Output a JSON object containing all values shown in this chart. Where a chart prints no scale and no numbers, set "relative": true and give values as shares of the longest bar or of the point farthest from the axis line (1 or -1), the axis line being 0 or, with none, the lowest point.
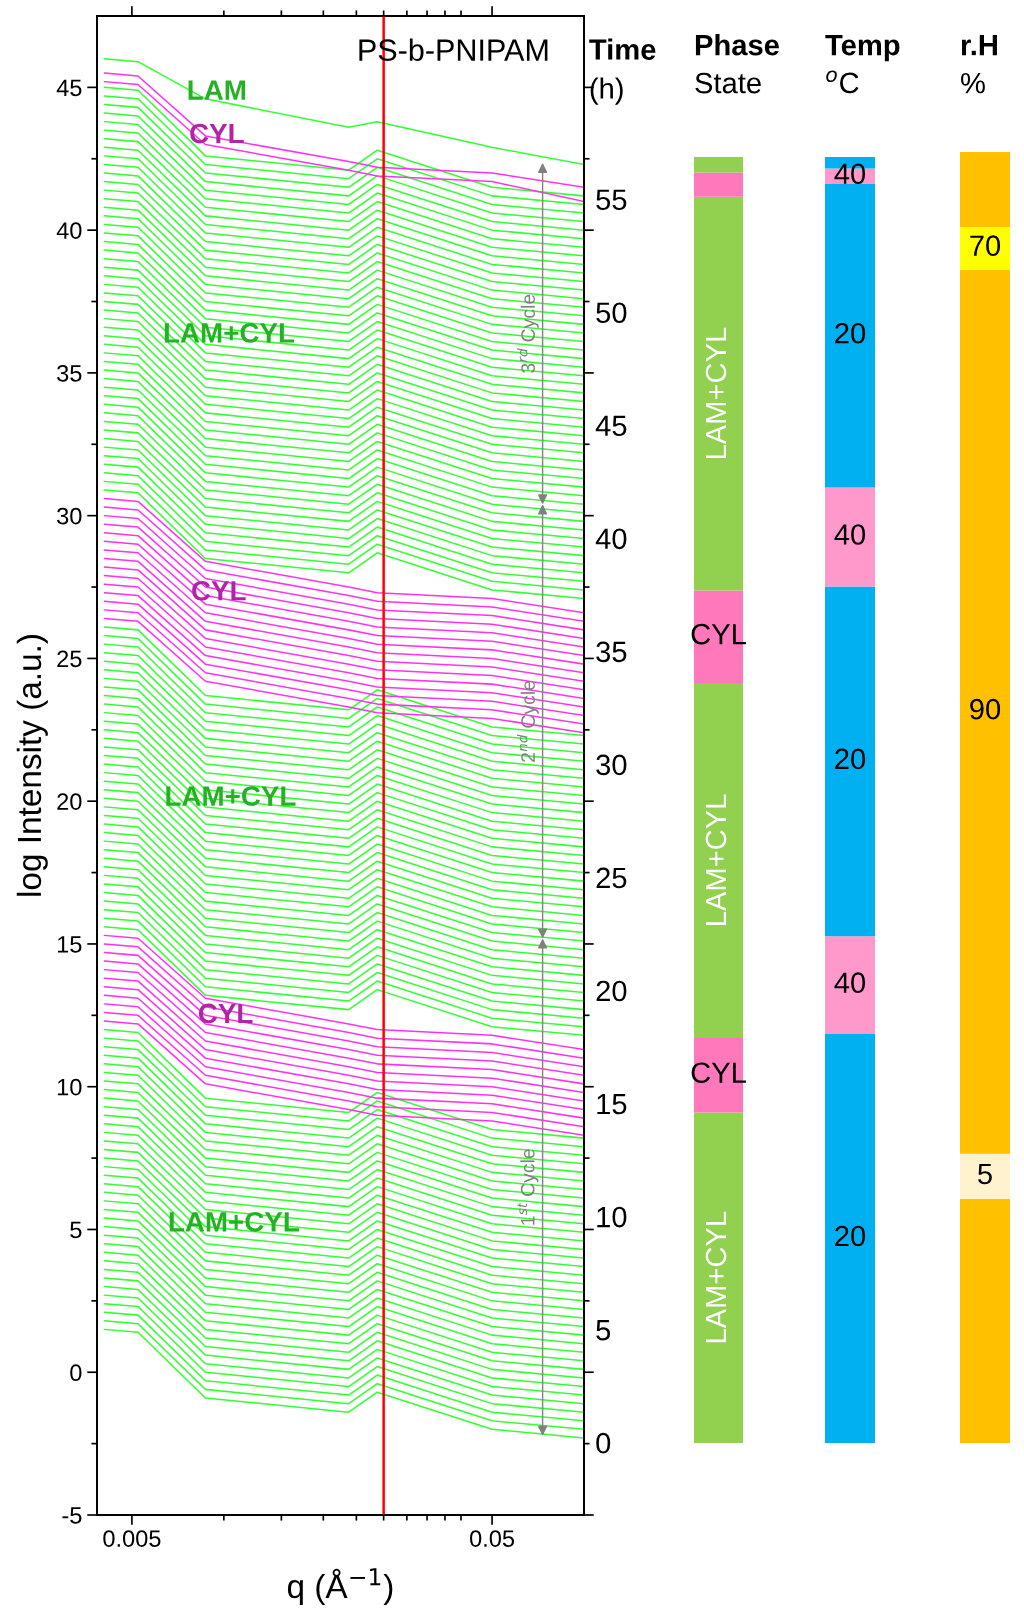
{
  "chart_data": [
    {
      "type": "line",
      "title": "PS-b-PNIPAM",
      "xlabel": "q (Å$^{−1}$)",
      "ylabel": "log Intensity (a.u.)",
      "y2label": "Time\n(h)",
      "log": "x",
      "x": [
        0.0042,
        0.0052,
        0.008,
        0.02,
        0.024,
        0.05,
        0.09
      ],
      "xlim": [
        0.004,
        0.09
      ],
      "xticks": [
        0.005,
        {
          "value": 0.009,
          "label": null
        },
        {
          "value": 0.013,
          "label": null
        },
        {
          "value": 0.017,
          "label": null
        },
        {
          "value": 0.021,
          "label": null
        },
        {
          "value": 0.025,
          "label": null
        },
        {
          "value": 0.029,
          "label": null
        },
        {
          "value": 0.033,
          "label": null
        },
        {
          "value": 0.037,
          "label": null
        },
        {
          "value": 0.041,
          "label": null
        },
        0.05
      ],
      "ylim": [
        -5,
        47.5
      ],
      "yticks": [
        -5,
        {
          "value": -2.5,
          "label": null
        },
        0,
        {
          "value": 2.5,
          "label": null
        },
        5,
        {
          "value": 7.5,
          "label": null
        },
        10,
        {
          "value": 12.5,
          "label": null
        },
        15,
        {
          "value": 17.5,
          "label": null
        },
        20,
        {
          "value": 22.5,
          "label": null
        },
        25,
        {
          "value": 27.5,
          "label": null
        },
        30,
        {
          "value": 32.5,
          "label": null
        },
        35,
        {
          "value": 37.5,
          "label": null
        },
        40,
        {
          "value": 42.5,
          "label": null
        },
        45
      ],
      "y2lim": [
        -3.2,
        63.1
      ],
      "y2ticks": [
        0,
        5,
        10,
        15,
        20,
        25,
        30,
        35,
        40,
        45,
        50,
        55
      ],
      "ref_lines": [
        {
          "axis": "x",
          "value": 0.025,
          "color": "#ff0000"
        }
      ],
      "annotations": [
        "LAM",
        "CYL",
        "LAM+CYL",
        "CYL",
        "LAM+CYL",
        "CYL",
        "LAM+CYL",
        "3$^{rd}$ Cycle",
        "2$^{nd}$ Cycle",
        "1$^{st}$ Cycle"
      ],
      "series": [
        {
          "color": "#33ff33",
          "values": [
            1.5,
            1.4,
            -0.9,
            -1.4,
            -0.7,
            -2.0,
            -2.3
          ]
        },
        {
          "color": "#33ff33",
          "values": [
            1.8,
            1.7,
            -0.6,
            -1.1,
            -0.4,
            -1.7,
            -2.0
          ]
        },
        {
          "color": "#33ff33",
          "values": [
            2.1,
            2.0,
            -0.3,
            -0.8,
            -0.1,
            -1.4,
            -1.7
          ]
        },
        {
          "color": "#33ff33",
          "values": [
            2.4,
            2.3,
            0.0,
            -0.5,
            0.2,
            -1.1,
            -1.4
          ]
        },
        {
          "color": "#33ff33",
          "values": [
            2.7,
            2.6,
            0.3,
            -0.2,
            0.5,
            -0.8,
            -1.1
          ]
        },
        {
          "color": "#33ff33",
          "values": [
            3.0,
            2.9,
            0.6,
            0.1,
            0.8,
            -0.5,
            -0.8
          ]
        },
        {
          "color": "#33ff33",
          "values": [
            3.3,
            3.2,
            0.9,
            0.4,
            1.1,
            -0.2,
            -0.5
          ]
        },
        {
          "color": "#33ff33",
          "values": [
            3.6,
            3.5,
            1.2,
            0.7,
            1.4,
            0.1,
            -0.2
          ]
        },
        {
          "color": "#33ff33",
          "values": [
            3.9,
            3.8,
            1.5,
            1.0,
            1.7,
            0.4,
            0.1
          ]
        },
        {
          "color": "#33ff33",
          "values": [
            4.2,
            4.1,
            1.8,
            1.3,
            2.0,
            0.7,
            0.4
          ]
        },
        {
          "color": "#33ff33",
          "values": [
            4.5,
            4.4,
            2.1,
            1.6,
            2.3,
            1.0,
            0.7
          ]
        },
        {
          "color": "#33ff33",
          "values": [
            4.8,
            4.7,
            2.4,
            1.9,
            2.6,
            1.3,
            1.0
          ]
        },
        {
          "color": "#33ff33",
          "values": [
            5.1,
            5.0,
            2.7,
            2.2,
            2.9,
            1.6,
            1.3
          ]
        },
        {
          "color": "#33ff33",
          "values": [
            5.4,
            5.3,
            3.0,
            2.5,
            3.2,
            1.9,
            1.6
          ]
        },
        {
          "color": "#33ff33",
          "values": [
            5.7,
            5.6,
            3.3,
            2.8,
            3.5,
            2.2,
            1.9
          ]
        },
        {
          "color": "#33ff33",
          "values": [
            6.0,
            5.9,
            3.6,
            3.1,
            3.8,
            2.5,
            2.2
          ]
        },
        {
          "color": "#33ff33",
          "values": [
            6.3,
            6.2,
            3.9,
            3.4,
            4.1,
            2.8,
            2.5
          ]
        },
        {
          "color": "#33ff33",
          "values": [
            6.6,
            6.5,
            4.2,
            3.7,
            4.4,
            3.1,
            2.8
          ]
        },
        {
          "color": "#33ff33",
          "values": [
            6.9,
            6.8,
            4.5,
            4.0,
            4.7,
            3.4,
            3.1
          ]
        },
        {
          "color": "#33ff33",
          "values": [
            7.2,
            7.1,
            4.8,
            4.3,
            5.0,
            3.7,
            3.4
          ]
        },
        {
          "color": "#33ff33",
          "values": [
            7.5,
            7.4,
            5.1,
            4.6,
            5.3,
            4.0,
            3.7
          ]
        },
        {
          "color": "#33ff33",
          "values": [
            7.8,
            7.7,
            5.4,
            4.9,
            5.6,
            4.3,
            4.0
          ]
        },
        {
          "color": "#33ff33",
          "values": [
            8.1,
            8.0,
            5.7,
            5.2,
            5.9,
            4.6,
            4.3
          ]
        },
        {
          "color": "#33ff33",
          "values": [
            8.4,
            8.3,
            6.0,
            5.5,
            6.2,
            4.9,
            4.6
          ]
        },
        {
          "color": "#33ff33",
          "values": [
            8.7,
            8.6,
            6.3,
            5.8,
            6.5,
            5.2,
            4.9
          ]
        },
        {
          "color": "#33ff33",
          "values": [
            9.0,
            8.9,
            6.6,
            6.1,
            6.8,
            5.5,
            5.2
          ]
        },
        {
          "color": "#33ff33",
          "values": [
            9.3,
            9.2,
            6.9,
            6.4,
            7.1,
            5.8,
            5.5
          ]
        },
        {
          "color": "#33ff33",
          "values": [
            9.6,
            9.5,
            7.2,
            6.7,
            7.4,
            6.1,
            5.8
          ]
        },
        {
          "color": "#33ff33",
          "values": [
            9.9,
            9.8,
            7.5,
            7.0,
            7.7,
            6.4,
            6.1
          ]
        },
        {
          "color": "#33ff33",
          "values": [
            10.2,
            10.1,
            7.8,
            7.3,
            8.0,
            6.7,
            6.4
          ]
        },
        {
          "color": "#33ff33",
          "values": [
            10.5,
            10.4,
            8.1,
            7.6,
            8.3,
            7.0,
            6.7
          ]
        },
        {
          "color": "#33ff33",
          "values": [
            10.8,
            10.7,
            8.4,
            7.9,
            8.6,
            7.3,
            7.0
          ]
        },
        {
          "color": "#33ff33",
          "values": [
            11.1,
            11.0,
            8.7,
            8.2,
            8.9,
            7.6,
            7.3
          ]
        },
        {
          "color": "#33ff33",
          "values": [
            11.4,
            11.3,
            9.0,
            8.5,
            9.2,
            7.9,
            7.6
          ]
        },
        {
          "color": "#33ff33",
          "values": [
            11.7,
            11.6,
            9.3,
            8.8,
            9.5,
            8.2,
            7.9
          ]
        },
        {
          "color": "#33ff33",
          "values": [
            12.0,
            11.9,
            9.6,
            9.1,
            9.8,
            8.5,
            8.2
          ]
        },
        {
          "color": "#ff33ee",
          "values": [
            12.3,
            12.2,
            10.1,
            9.2,
            9.0,
            8.8,
            8.3
          ]
        },
        {
          "color": "#ff33ee",
          "values": [
            12.6,
            12.5,
            10.4,
            9.5,
            9.3,
            9.1,
            8.6
          ]
        },
        {
          "color": "#ff33ee",
          "values": [
            12.9,
            12.8,
            10.7,
            9.8,
            9.6,
            9.4,
            8.9
          ]
        },
        {
          "color": "#ff33ee",
          "values": [
            13.2,
            13.1,
            11.0,
            10.1,
            9.9,
            9.7,
            9.2
          ]
        },
        {
          "color": "#ff33ee",
          "values": [
            13.5,
            13.4,
            11.3,
            10.4,
            10.2,
            10.0,
            9.5
          ]
        },
        {
          "color": "#ff33ee",
          "values": [
            13.8,
            13.7,
            11.6,
            10.7,
            10.5,
            10.3,
            9.8
          ]
        },
        {
          "color": "#ff33ee",
          "values": [
            14.1,
            14.0,
            11.9,
            11.0,
            10.8,
            10.6,
            10.1
          ]
        },
        {
          "color": "#ff33ee",
          "values": [
            14.4,
            14.3,
            12.2,
            11.3,
            11.1,
            10.9,
            10.4
          ]
        },
        {
          "color": "#ff33ee",
          "values": [
            14.7,
            14.6,
            12.5,
            11.6,
            11.4,
            11.2,
            10.7
          ]
        },
        {
          "color": "#ff33ee",
          "values": [
            15.0,
            14.9,
            12.8,
            11.9,
            11.7,
            11.5,
            11.0
          ]
        },
        {
          "color": "#ff33ee",
          "values": [
            15.3,
            15.2,
            13.1,
            12.2,
            12.0,
            11.8,
            11.3
          ]
        },
        {
          "color": "#33ff33",
          "values": [
            15.6,
            15.5,
            13.2,
            12.7,
            13.4,
            12.1,
            11.8
          ]
        },
        {
          "color": "#33ff33",
          "values": [
            15.9,
            15.8,
            13.5,
            13.0,
            13.7,
            12.4,
            12.1
          ]
        },
        {
          "color": "#33ff33",
          "values": [
            16.2,
            16.1,
            13.8,
            13.3,
            14.0,
            12.7,
            12.4
          ]
        },
        {
          "color": "#33ff33",
          "values": [
            16.5,
            16.4,
            14.1,
            13.6,
            14.3,
            13.0,
            12.7
          ]
        },
        {
          "color": "#33ff33",
          "values": [
            16.8,
            16.7,
            14.4,
            13.9,
            14.6,
            13.3,
            13.0
          ]
        },
        {
          "color": "#33ff33",
          "values": [
            17.1,
            17.0,
            14.7,
            14.2,
            14.9,
            13.6,
            13.3
          ]
        },
        {
          "color": "#33ff33",
          "values": [
            17.4,
            17.3,
            15.0,
            14.5,
            15.2,
            13.9,
            13.6
          ]
        },
        {
          "color": "#33ff33",
          "values": [
            17.7,
            17.6,
            15.3,
            14.8,
            15.5,
            14.2,
            13.9
          ]
        },
        {
          "color": "#33ff33",
          "values": [
            18.0,
            17.9,
            15.6,
            15.1,
            15.8,
            14.5,
            14.2
          ]
        },
        {
          "color": "#33ff33",
          "values": [
            18.3,
            18.2,
            15.9,
            15.4,
            16.1,
            14.8,
            14.5
          ]
        },
        {
          "color": "#33ff33",
          "values": [
            18.6,
            18.5,
            16.2,
            15.7,
            16.4,
            15.1,
            14.8
          ]
        },
        {
          "color": "#33ff33",
          "values": [
            18.9,
            18.8,
            16.5,
            16.0,
            16.7,
            15.4,
            15.1
          ]
        },
        {
          "color": "#33ff33",
          "values": [
            19.2,
            19.1,
            16.8,
            16.3,
            17.0,
            15.7,
            15.4
          ]
        },
        {
          "color": "#33ff33",
          "values": [
            19.5,
            19.4,
            17.1,
            16.6,
            17.3,
            16.0,
            15.7
          ]
        },
        {
          "color": "#33ff33",
          "values": [
            19.8,
            19.7,
            17.4,
            16.9,
            17.6,
            16.3,
            16.0
          ]
        },
        {
          "color": "#33ff33",
          "values": [
            20.1,
            20.0,
            17.7,
            17.2,
            17.9,
            16.6,
            16.3
          ]
        },
        {
          "color": "#33ff33",
          "values": [
            20.4,
            20.3,
            18.0,
            17.5,
            18.2,
            16.9,
            16.6
          ]
        },
        {
          "color": "#33ff33",
          "values": [
            20.7,
            20.6,
            18.3,
            17.8,
            18.5,
            17.2,
            16.9
          ]
        },
        {
          "color": "#33ff33",
          "values": [
            21.0,
            20.9,
            18.6,
            18.1,
            18.8,
            17.5,
            17.2
          ]
        },
        {
          "color": "#33ff33",
          "values": [
            21.3,
            21.2,
            18.9,
            18.4,
            19.1,
            17.8,
            17.5
          ]
        },
        {
          "color": "#33ff33",
          "values": [
            21.6,
            21.5,
            19.2,
            18.7,
            19.4,
            18.1,
            17.8
          ]
        },
        {
          "color": "#33ff33",
          "values": [
            21.9,
            21.8,
            19.5,
            19.0,
            19.7,
            18.4,
            18.1
          ]
        },
        {
          "color": "#33ff33",
          "values": [
            22.2,
            22.1,
            19.8,
            19.3,
            20.0,
            18.7,
            18.4
          ]
        },
        {
          "color": "#33ff33",
          "values": [
            22.5,
            22.4,
            20.1,
            19.6,
            20.3,
            19.0,
            18.7
          ]
        },
        {
          "color": "#33ff33",
          "values": [
            22.8,
            22.7,
            20.4,
            19.9,
            20.6,
            19.3,
            19.0
          ]
        },
        {
          "color": "#33ff33",
          "values": [
            23.1,
            23.0,
            20.7,
            20.2,
            20.9,
            19.6,
            19.3
          ]
        },
        {
          "color": "#33ff33",
          "values": [
            23.4,
            23.3,
            21.0,
            20.5,
            21.2,
            19.9,
            19.6
          ]
        },
        {
          "color": "#33ff33",
          "values": [
            23.7,
            23.6,
            21.3,
            20.8,
            21.5,
            20.2,
            19.9
          ]
        },
        {
          "color": "#33ff33",
          "values": [
            24.0,
            23.9,
            21.6,
            21.1,
            21.8,
            20.5,
            20.2
          ]
        },
        {
          "color": "#33ff33",
          "values": [
            24.3,
            24.2,
            21.9,
            21.4,
            22.1,
            20.8,
            20.5
          ]
        },
        {
          "color": "#33ff33",
          "values": [
            24.6,
            24.5,
            22.2,
            21.7,
            22.4,
            21.1,
            20.8
          ]
        },
        {
          "color": "#33ff33",
          "values": [
            24.9,
            24.8,
            22.5,
            22.0,
            22.7,
            21.4,
            21.1
          ]
        },
        {
          "color": "#33ff33",
          "values": [
            25.2,
            25.1,
            22.8,
            22.3,
            23.0,
            21.7,
            21.4
          ]
        },
        {
          "color": "#33ff33",
          "values": [
            25.5,
            25.4,
            23.1,
            22.6,
            23.3,
            22.0,
            21.7
          ]
        },
        {
          "color": "#33ff33",
          "values": [
            25.8,
            25.7,
            23.4,
            22.9,
            23.6,
            22.3,
            22.0
          ]
        },
        {
          "color": "#33ff33",
          "values": [
            26.1,
            26.0,
            23.7,
            23.2,
            23.9,
            22.6,
            22.3
          ]
        },
        {
          "color": "#ff33ee",
          "values": [
            26.4,
            26.3,
            24.2,
            23.3,
            23.1,
            22.9,
            22.4
          ]
        },
        {
          "color": "#ff33ee",
          "values": [
            26.7,
            26.6,
            24.5,
            23.6,
            23.4,
            23.2,
            22.7
          ]
        },
        {
          "color": "#ff33ee",
          "values": [
            27.0,
            26.9,
            24.8,
            23.9,
            23.7,
            23.5,
            23.0
          ]
        },
        {
          "color": "#ff33ee",
          "values": [
            27.3,
            27.2,
            25.1,
            24.2,
            24.0,
            23.8,
            23.3
          ]
        },
        {
          "color": "#ff33ee",
          "values": [
            27.6,
            27.5,
            25.4,
            24.5,
            24.3,
            24.1,
            23.6
          ]
        },
        {
          "color": "#ff33ee",
          "values": [
            27.9,
            27.8,
            25.7,
            24.8,
            24.6,
            24.4,
            23.9
          ]
        },
        {
          "color": "#ff33ee",
          "values": [
            28.2,
            28.1,
            26.0,
            25.1,
            24.9,
            24.7,
            24.2
          ]
        },
        {
          "color": "#ff33ee",
          "values": [
            28.5,
            28.4,
            26.3,
            25.4,
            25.2,
            25.0,
            24.5
          ]
        },
        {
          "color": "#ff33ee",
          "values": [
            28.8,
            28.7,
            26.6,
            25.7,
            25.5,
            25.3,
            24.8
          ]
        },
        {
          "color": "#ff33ee",
          "values": [
            29.1,
            29.0,
            26.9,
            26.0,
            25.8,
            25.6,
            25.1
          ]
        },
        {
          "color": "#ff33ee",
          "values": [
            29.4,
            29.3,
            27.2,
            26.3,
            26.1,
            25.9,
            25.4
          ]
        },
        {
          "color": "#ff33ee",
          "values": [
            29.7,
            29.6,
            27.5,
            26.6,
            26.4,
            26.2,
            25.7
          ]
        },
        {
          "color": "#ff33ee",
          "values": [
            30.0,
            29.9,
            27.8,
            26.9,
            26.7,
            26.5,
            26.0
          ]
        },
        {
          "color": "#ff33ee",
          "values": [
            30.3,
            30.2,
            28.1,
            27.2,
            27.0,
            26.8,
            26.3
          ]
        },
        {
          "color": "#ff33ee",
          "values": [
            30.6,
            30.5,
            28.4,
            27.5,
            27.3,
            27.1,
            26.6
          ]
        },
        {
          "color": "#33ff33",
          "values": [
            30.9,
            30.8,
            28.5,
            28.0,
            28.7,
            27.4,
            27.1
          ]
        },
        {
          "color": "#33ff33",
          "values": [
            31.2,
            31.1,
            28.8,
            28.3,
            29.0,
            27.7,
            27.4
          ]
        },
        {
          "color": "#33ff33",
          "values": [
            31.5,
            31.4,
            29.1,
            28.6,
            29.3,
            28.0,
            27.7
          ]
        },
        {
          "color": "#33ff33",
          "values": [
            31.8,
            31.7,
            29.4,
            28.9,
            29.6,
            28.3,
            28.0
          ]
        },
        {
          "color": "#33ff33",
          "values": [
            32.1,
            32.0,
            29.7,
            29.2,
            29.9,
            28.6,
            28.3
          ]
        },
        {
          "color": "#33ff33",
          "values": [
            32.4,
            32.3,
            30.0,
            29.5,
            30.2,
            28.9,
            28.6
          ]
        },
        {
          "color": "#33ff33",
          "values": [
            32.7,
            32.6,
            30.3,
            29.8,
            30.5,
            29.2,
            28.9
          ]
        },
        {
          "color": "#33ff33",
          "values": [
            33.0,
            32.9,
            30.6,
            30.1,
            30.8,
            29.5,
            29.2
          ]
        },
        {
          "color": "#33ff33",
          "values": [
            33.3,
            33.2,
            30.9,
            30.4,
            31.1,
            29.8,
            29.5
          ]
        },
        {
          "color": "#33ff33",
          "values": [
            33.6,
            33.5,
            31.2,
            30.7,
            31.4,
            30.1,
            29.8
          ]
        },
        {
          "color": "#33ff33",
          "values": [
            33.9,
            33.8,
            31.5,
            31.0,
            31.7,
            30.4,
            30.1
          ]
        },
        {
          "color": "#33ff33",
          "values": [
            34.2,
            34.1,
            31.8,
            31.3,
            32.0,
            30.7,
            30.4
          ]
        },
        {
          "color": "#33ff33",
          "values": [
            34.5,
            34.4,
            32.1,
            31.6,
            32.3,
            31.0,
            30.7
          ]
        },
        {
          "color": "#33ff33",
          "values": [
            34.8,
            34.7,
            32.4,
            31.9,
            32.6,
            31.3,
            31.0
          ]
        },
        {
          "color": "#33ff33",
          "values": [
            35.1,
            35.0,
            32.7,
            32.2,
            32.9,
            31.6,
            31.3
          ]
        },
        {
          "color": "#33ff33",
          "values": [
            35.4,
            35.3,
            33.0,
            32.5,
            33.2,
            31.9,
            31.6
          ]
        },
        {
          "color": "#33ff33",
          "values": [
            35.7,
            35.6,
            33.3,
            32.8,
            33.5,
            32.2,
            31.9
          ]
        },
        {
          "color": "#33ff33",
          "values": [
            36.0,
            35.9,
            33.6,
            33.1,
            33.8,
            32.5,
            32.2
          ]
        },
        {
          "color": "#33ff33",
          "values": [
            36.3,
            36.2,
            33.9,
            33.4,
            34.1,
            32.8,
            32.5
          ]
        },
        {
          "color": "#33ff33",
          "values": [
            36.6,
            36.5,
            34.2,
            33.7,
            34.4,
            33.1,
            32.8
          ]
        },
        {
          "color": "#33ff33",
          "values": [
            36.9,
            36.8,
            34.5,
            34.0,
            34.7,
            33.4,
            33.1
          ]
        },
        {
          "color": "#33ff33",
          "values": [
            37.2,
            37.1,
            34.8,
            34.3,
            35.0,
            33.7,
            33.4
          ]
        },
        {
          "color": "#33ff33",
          "values": [
            37.5,
            37.4,
            35.1,
            34.6,
            35.3,
            34.0,
            33.7
          ]
        },
        {
          "color": "#33ff33",
          "values": [
            37.8,
            37.7,
            35.4,
            34.9,
            35.6,
            34.3,
            34.0
          ]
        },
        {
          "color": "#33ff33",
          "values": [
            38.1,
            38.0,
            35.7,
            35.2,
            35.9,
            34.6,
            34.3
          ]
        },
        {
          "color": "#33ff33",
          "values": [
            38.4,
            38.3,
            36.0,
            35.5,
            36.2,
            34.9,
            34.6
          ]
        },
        {
          "color": "#33ff33",
          "values": [
            38.7,
            38.6,
            36.3,
            35.8,
            36.5,
            35.2,
            34.9
          ]
        },
        {
          "color": "#33ff33",
          "values": [
            39.0,
            38.9,
            36.6,
            36.1,
            36.8,
            35.5,
            35.2
          ]
        },
        {
          "color": "#33ff33",
          "values": [
            39.3,
            39.2,
            36.9,
            36.4,
            37.1,
            35.8,
            35.5
          ]
        },
        {
          "color": "#33ff33",
          "values": [
            39.6,
            39.5,
            37.2,
            36.7,
            37.4,
            36.1,
            35.8
          ]
        },
        {
          "color": "#33ff33",
          "values": [
            39.9,
            39.8,
            37.5,
            37.0,
            37.7,
            36.4,
            36.1
          ]
        },
        {
          "color": "#33ff33",
          "values": [
            40.2,
            40.1,
            37.8,
            37.3,
            38.0,
            36.7,
            36.4
          ]
        },
        {
          "color": "#33ff33",
          "values": [
            40.5,
            40.4,
            38.1,
            37.6,
            38.3,
            37.0,
            36.7
          ]
        },
        {
          "color": "#33ff33",
          "values": [
            40.8,
            40.7,
            38.4,
            37.9,
            38.6,
            37.3,
            37.0
          ]
        },
        {
          "color": "#33ff33",
          "values": [
            41.1,
            41.0,
            38.7,
            38.2,
            38.9,
            37.6,
            37.3
          ]
        },
        {
          "color": "#33ff33",
          "values": [
            41.4,
            41.3,
            39.0,
            38.5,
            39.2,
            37.9,
            37.6
          ]
        },
        {
          "color": "#33ff33",
          "values": [
            41.7,
            41.6,
            39.3,
            38.8,
            39.5,
            38.2,
            37.9
          ]
        },
        {
          "color": "#33ff33",
          "values": [
            42.0,
            41.9,
            39.6,
            39.1,
            39.8,
            38.5,
            38.2
          ]
        },
        {
          "color": "#33ff33",
          "values": [
            42.3,
            42.2,
            39.9,
            39.4,
            40.1,
            38.8,
            38.5
          ]
        },
        {
          "color": "#33ff33",
          "values": [
            42.6,
            42.5,
            40.2,
            39.7,
            40.4,
            39.1,
            38.8
          ]
        },
        {
          "color": "#33ff33",
          "values": [
            42.9,
            42.8,
            40.5,
            40.0,
            40.7,
            39.4,
            39.1
          ]
        },
        {
          "color": "#33ff33",
          "values": [
            43.2,
            43.1,
            40.8,
            40.3,
            41.0,
            39.7,
            39.4
          ]
        },
        {
          "color": "#33ff33",
          "values": [
            43.5,
            43.4,
            41.1,
            40.6,
            41.3,
            40.0,
            39.7
          ]
        },
        {
          "color": "#33ff33",
          "values": [
            43.8,
            43.7,
            41.4,
            40.9,
            41.6,
            40.3,
            40.0
          ]
        },
        {
          "color": "#33ff33",
          "values": [
            44.1,
            44.0,
            41.7,
            41.2,
            41.9,
            40.6,
            40.3
          ]
        },
        {
          "color": "#33ff33",
          "values": [
            44.4,
            44.3,
            42.0,
            41.5,
            42.2,
            40.9,
            40.6
          ]
        },
        {
          "color": "#33ff33",
          "values": [
            44.7,
            44.6,
            42.3,
            41.8,
            42.5,
            41.2,
            40.9
          ]
        },
        {
          "color": "#33ff33",
          "values": [
            45.0,
            44.9,
            42.6,
            42.1,
            42.8,
            41.5,
            41.2
          ]
        },
        {
          "color": "#ff33ee",
          "values": [
            45.2,
            45.1,
            43.0,
            42.1,
            41.9,
            41.7,
            41.0
          ]
        },
        {
          "color": "#ff33ee",
          "values": [
            45.5,
            45.4,
            43.3,
            42.4,
            42.2,
            42.0,
            41.5
          ]
        },
        {
          "color": "#33ff33",
          "values": [
            46.0,
            45.9,
            44.6,
            43.6,
            43.8,
            42.9,
            42.3
          ]
        }
      ]
    },
    {
      "type": "bar",
      "title": "Phase",
      "subtitle": "State",
      "stacked": true,
      "relative": true,
      "categories": [
        null
      ],
      "series": [
        {
          "name": "LAM+CYL",
          "color": "#92d050",
          "values": [
            0.257
          ]
        },
        {
          "name": "CYL",
          "color": "#ff78bb",
          "values": [
            0.058
          ]
        },
        {
          "name": "LAM+CYL",
          "color": "#92d050",
          "values": [
            0.276
          ]
        },
        {
          "name": "CYL",
          "color": "#ff78bb",
          "values": [
            0.072
          ]
        },
        {
          "name": "LAM+CYL",
          "color": "#92d050",
          "values": [
            0.306
          ]
        },
        {
          "color": "#ff78bb",
          "values": [
            0.019
          ]
        },
        {
          "color": "#92d050",
          "values": [
            0.012
          ]
        }
      ]
    },
    {
      "type": "bar",
      "title": "Temp",
      "subtitle": "$^{o}$C",
      "stacked": true,
      "relative": true,
      "categories": [
        null
      ],
      "series": [
        {
          "name": "20",
          "color": "#00b0f0",
          "values": [
            0.318
          ]
        },
        {
          "name": "40",
          "color": "#ff99cc",
          "values": [
            0.076
          ]
        },
        {
          "name": "20",
          "color": "#00b0f0",
          "values": [
            0.272
          ]
        },
        {
          "name": "40",
          "color": "#ff99cc",
          "values": [
            0.077
          ]
        },
        {
          "name": "20",
          "color": "#00b0f0",
          "values": [
            0.236
          ]
        },
        {
          "name": "40",
          "color": "#ff99cc",
          "values": [
            0.012
          ]
        },
        {
          "color": "#00b0f0",
          "values": [
            0.009
          ]
        }
      ]
    },
    {
      "type": "bar",
      "title": "r.H",
      "subtitle": "%",
      "stacked": true,
      "relative": true,
      "categories": [
        null
      ],
      "series": [
        {
          "color": "#ffc000",
          "values": [
            0.189
          ]
        },
        {
          "name": "5",
          "color": "#fff2cc",
          "values": [
            0.035
          ]
        },
        {
          "name": "90",
          "color": "#ffc000",
          "values": [
            0.685
          ]
        },
        {
          "name": "70",
          "color": "#ffff00",
          "values": [
            0.033
          ]
        },
        {
          "color": "#ffc000",
          "values": [
            0.058
          ]
        }
      ]
    }
  ]
}
